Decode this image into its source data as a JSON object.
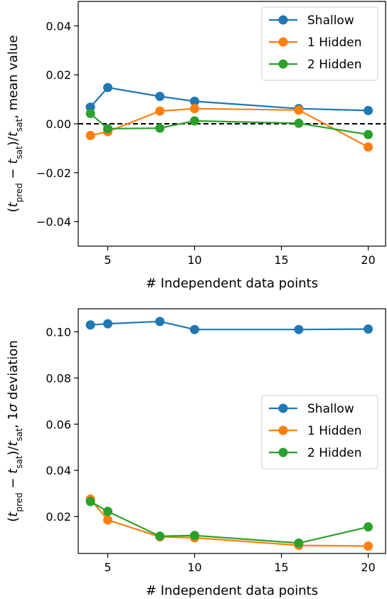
{
  "chart_data": [
    {
      "type": "line",
      "xlabel": "# Independent data points",
      "ylabel": "(t_pred − t_sat)/t_sat, mean value",
      "xlim": [
        3.3,
        21
      ],
      "ylim": [
        -0.05,
        0.05
      ],
      "xticks": [
        5,
        10,
        15,
        20
      ],
      "yticks": [
        -0.04,
        -0.02,
        0.0,
        0.02,
        0.04
      ],
      "ytick_labels": [
        "−0.04",
        "−0.02",
        "0.00",
        "0.02",
        "0.04"
      ],
      "reference_line": {
        "y": 0,
        "style": "dashed",
        "color": "#000000"
      },
      "legend_position": "top-right",
      "x": [
        4,
        5,
        8,
        10,
        16,
        20
      ],
      "series": [
        {
          "name": "Shallow",
          "color": "#1f77b4",
          "values": [
            0.0068,
            0.0148,
            0.0112,
            0.0092,
            0.0062,
            0.0054
          ]
        },
        {
          "name": "1 Hidden",
          "color": "#ff7f0e",
          "values": [
            -0.0048,
            -0.0032,
            0.0052,
            0.0062,
            0.0056,
            -0.0095
          ]
        },
        {
          "name": "2 Hidden",
          "color": "#2ca02c",
          "values": [
            0.0042,
            -0.002,
            -0.0018,
            0.0012,
            0.0002,
            -0.0044
          ]
        }
      ]
    },
    {
      "type": "line",
      "xlabel": "# Independent data points",
      "ylabel": "(t_pred − t_sat)/t_sat, 1σ deviation",
      "xlim": [
        3.3,
        21
      ],
      "ylim": [
        0.004,
        0.11
      ],
      "xticks": [
        5,
        10,
        15,
        20
      ],
      "yticks": [
        0.02,
        0.04,
        0.06,
        0.08,
        0.1
      ],
      "ytick_labels": [
        "0.02",
        "0.04",
        "0.06",
        "0.08",
        "0.10"
      ],
      "legend_position": "center-right",
      "x": [
        4,
        5,
        8,
        10,
        16,
        20
      ],
      "series": [
        {
          "name": "Shallow",
          "color": "#1f77b4",
          "values": [
            0.103,
            0.1035,
            0.1045,
            0.101,
            0.101,
            0.1012
          ]
        },
        {
          "name": "1 Hidden",
          "color": "#ff7f0e",
          "values": [
            0.0275,
            0.0185,
            0.0112,
            0.0108,
            0.0075,
            0.0072
          ]
        },
        {
          "name": "2 Hidden",
          "color": "#2ca02c",
          "values": [
            0.0265,
            0.0222,
            0.0115,
            0.0118,
            0.0085,
            0.0155
          ]
        }
      ]
    }
  ]
}
